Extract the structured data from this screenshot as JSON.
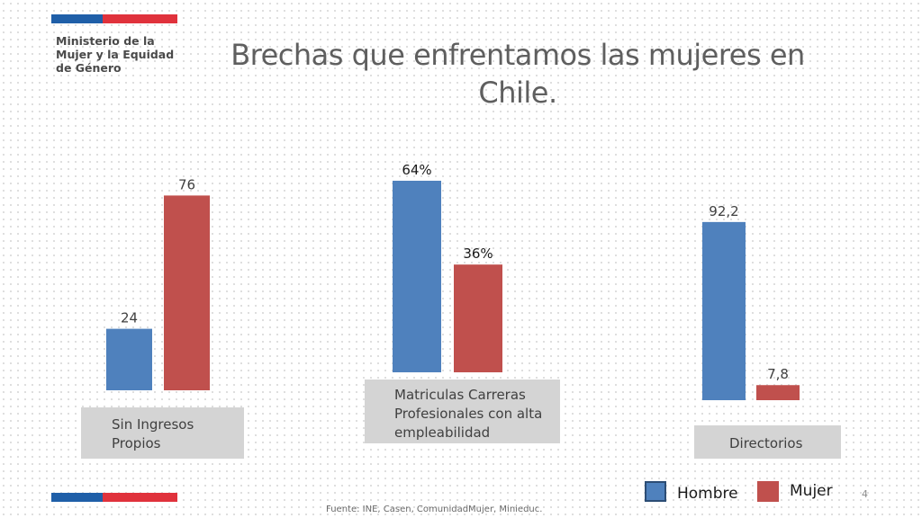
{
  "header": {
    "ministry_lines": [
      "Ministerio de la",
      "Mujer y la Equidad",
      "de Género"
    ],
    "title_lines": [
      "Brechas que enfrentamos las mujeres en",
      "Chile."
    ]
  },
  "colors": {
    "hombre": "#4f81bd",
    "mujer": "#c0504d",
    "flag_blue": "#1f5fa8",
    "flag_red": "#e0323c"
  },
  "chart_data": {
    "type": "bar",
    "legend_placement": "bottom-right",
    "grid": false,
    "groups": [
      {
        "category_lines": [
          "Sin Ingresos",
          "Propios"
        ],
        "ylim": [
          0,
          80
        ],
        "series": [
          {
            "name": "Hombre",
            "value": 24,
            "label": "24"
          },
          {
            "name": "Mujer",
            "value": 76,
            "label": "76"
          }
        ]
      },
      {
        "category_lines": [
          "Matriculas Carreras",
          "Profesionales con alta",
          "empleabilidad"
        ],
        "ylim": [
          0,
          67
        ],
        "series": [
          {
            "name": "Hombre",
            "value": 64,
            "label": "64%"
          },
          {
            "name": "Mujer",
            "value": 36,
            "label": "36%"
          }
        ]
      },
      {
        "category_lines": [
          "Directorios"
        ],
        "ylim": [
          0,
          94
        ],
        "series": [
          {
            "name": "Hombre",
            "value": 92.2,
            "label": "92,2"
          },
          {
            "name": "Mujer",
            "value": 7.8,
            "label": "7,8"
          }
        ]
      }
    ],
    "legend": [
      "Hombre",
      "Mujer"
    ]
  },
  "footer": {
    "source": "Fuente: INE, Casen, ComunidadMujer, Minieduc.",
    "page_number": "4"
  }
}
